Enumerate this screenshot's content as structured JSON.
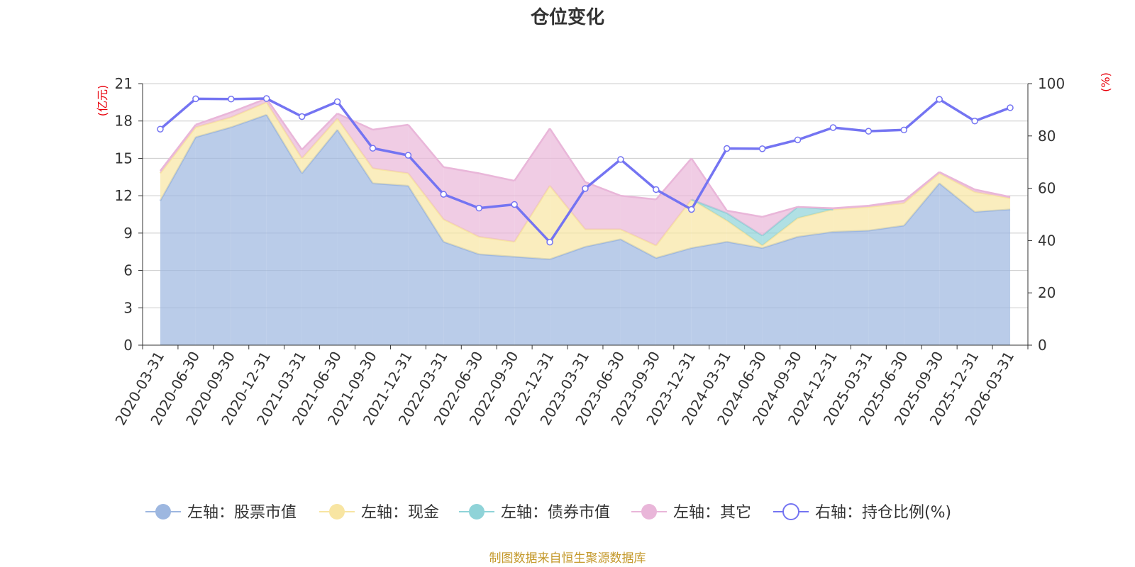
{
  "colors": {
    "stock": "#9db7e0",
    "cash": "#f8e5a2",
    "bond": "#8fd3d8",
    "other": "#e9b6d9",
    "ratio": "#7474f2",
    "grid": "#cccccc",
    "unit": "#e8000b",
    "source": "#c4992b"
  },
  "chart_data": {
    "type": "area",
    "title": "仓位变化",
    "left_axis": {
      "unit": "(亿元)",
      "ticks": [
        0,
        3,
        6,
        9,
        12,
        15,
        18,
        21
      ],
      "min": 0,
      "max": 21
    },
    "right_axis": {
      "unit": "(%)",
      "ticks": [
        0,
        20,
        40,
        60,
        80,
        100
      ],
      "min": 0,
      "max": 100
    },
    "categories": [
      "2020-03-31",
      "2020-06-30",
      "2020-09-30",
      "2020-12-31",
      "2021-03-31",
      "2021-06-30",
      "2021-09-30",
      "2021-12-31",
      "2022-03-31",
      "2022-06-30",
      "2022-09-30",
      "2022-12-31",
      "2023-03-31",
      "2023-06-30",
      "2023-09-30",
      "2023-12-31",
      "2024-03-31",
      "2024-06-30",
      "2024-09-30",
      "2024-12-31",
      "2025-03-31",
      "2025-06-30",
      "2025-09-30",
      "2025-12-31",
      "2026-03-31"
    ],
    "series": [
      {
        "name": "左轴：股票市值",
        "axis": "left",
        "kind": "stack",
        "values": [
          11.6,
          16.7,
          17.5,
          18.5,
          13.8,
          17.3,
          13.0,
          12.8,
          8.3,
          7.3,
          7.1,
          6.9,
          7.9,
          8.5,
          7.0,
          7.8,
          8.3,
          7.8,
          8.7,
          9.1,
          9.2,
          9.6,
          13.0,
          10.7,
          10.9
        ]
      },
      {
        "name": "左轴：现金",
        "axis": "left",
        "kind": "stack",
        "values": [
          2.2,
          0.8,
          0.8,
          1.0,
          1.2,
          0.9,
          1.2,
          1.0,
          1.8,
          1.4,
          1.2,
          5.9,
          1.4,
          0.8,
          1.0,
          3.9,
          1.7,
          0.2,
          1.5,
          1.8,
          1.9,
          1.8,
          0.8,
          1.6,
          0.9
        ]
      },
      {
        "name": "左轴：债券市值",
        "axis": "left",
        "kind": "stack",
        "values": [
          0,
          0,
          0,
          0,
          0,
          0,
          0,
          0,
          0,
          0,
          0,
          0,
          0,
          0,
          0,
          0,
          0.6,
          0.8,
          0.9,
          0,
          0,
          0,
          0,
          0,
          0
        ]
      },
      {
        "name": "左轴：其它",
        "axis": "left",
        "kind": "stack",
        "values": [
          0.2,
          0.2,
          0.4,
          0.3,
          0.7,
          0.4,
          3.1,
          3.9,
          4.2,
          5.1,
          4.9,
          4.6,
          3.8,
          2.7,
          3.7,
          3.3,
          0.2,
          1.5,
          0,
          0.1,
          0.1,
          0.2,
          0.1,
          0.2,
          0.1
        ]
      },
      {
        "name": "右轴：持仓比例(%)",
        "axis": "right",
        "kind": "line",
        "values": [
          82.6,
          94.2,
          94.1,
          94.3,
          87.4,
          93.1,
          75.3,
          72.6,
          57.7,
          52.4,
          53.8,
          39.4,
          59.9,
          71.0,
          59.5,
          51.9,
          75.2,
          75.1,
          78.5,
          83.2,
          81.8,
          82.3,
          94.0,
          85.7,
          90.8
        ]
      }
    ]
  },
  "legend": [
    {
      "label": "左轴：股票市值",
      "color_key": "stock",
      "hollow": false
    },
    {
      "label": "左轴：现金",
      "color_key": "cash",
      "hollow": false
    },
    {
      "label": "左轴：债券市值",
      "color_key": "bond",
      "hollow": false
    },
    {
      "label": "左轴：其它",
      "color_key": "other",
      "hollow": false
    },
    {
      "label": "右轴：持仓比例(%)",
      "color_key": "ratio",
      "hollow": true
    }
  ],
  "source": "制图数据来自恒生聚源数据库"
}
